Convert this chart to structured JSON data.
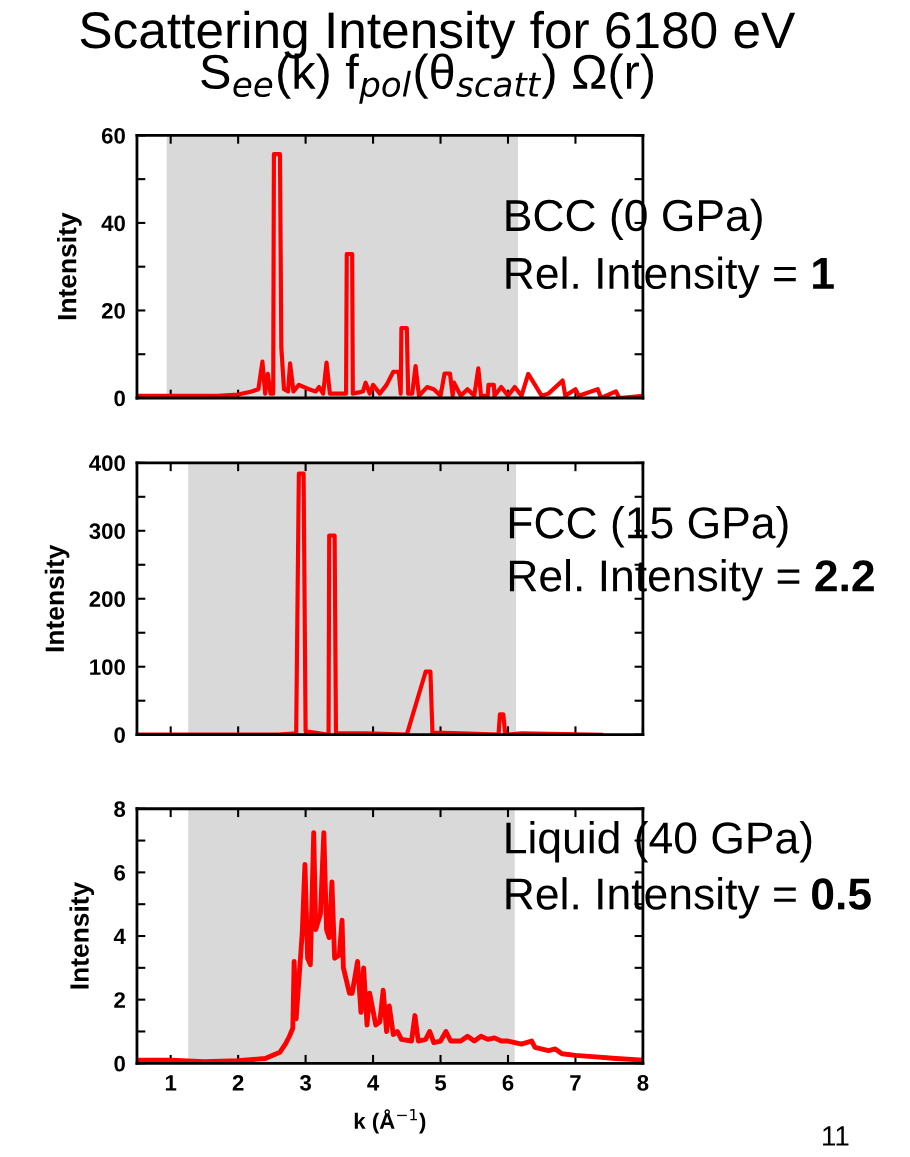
{
  "chart_data": [
    {
      "type": "line",
      "title": "Scattering Intensity for 6180 eV",
      "subtitle": "S$_{ee}$(k) f$_{pol}$(θ$_{scatt}$) Ω(r)",
      "ylabel": "Intensity",
      "xlim": [
        0.5,
        8
      ],
      "xticks": [
        1,
        2,
        3,
        4,
        5,
        6,
        7,
        8
      ],
      "ylim": [
        0,
        60
      ],
      "yticks": [
        0,
        {
          "value": 10,
          "label": null
        },
        20,
        {
          "value": 30,
          "label": null
        },
        40,
        {
          "value": 50,
          "label": null
        },
        60
      ],
      "tick_labels": "y",
      "grid": false,
      "marker": "none",
      "line_style": "solid",
      "bands": [
        {
          "axis": "x",
          "from": 0.94,
          "to": 6.15,
          "color": "#d9d9d9"
        }
      ],
      "annotations": [
        "BCC (0 GPa)",
        "Rel. Intensity = ",
        "1"
      ],
      "series": [
        {
          "color": "#ff0000",
          "x": [
            0.5,
            1.7,
            2.0,
            2.2,
            2.3,
            2.36,
            2.4,
            2.44,
            2.48,
            2.52,
            2.53,
            2.62,
            2.64,
            2.68,
            2.74,
            2.77,
            2.82,
            2.9,
            3.05,
            3.15,
            3.2,
            3.26,
            3.31,
            3.36,
            3.5,
            3.6,
            3.61,
            3.69,
            3.7,
            3.85,
            3.89,
            3.95,
            4.0,
            4.1,
            4.2,
            4.3,
            4.38,
            4.41,
            4.42,
            4.5,
            4.52,
            4.58,
            4.63,
            4.68,
            4.8,
            4.9,
            5.0,
            5.06,
            5.14,
            5.18,
            5.2,
            5.3,
            5.4,
            5.5,
            5.56,
            5.6,
            5.7,
            5.71,
            5.79,
            5.8,
            5.9,
            6.0,
            6.1,
            6.2,
            6.3,
            6.5,
            6.6,
            6.81,
            6.85,
            7.0,
            7.05,
            7.33,
            7.38,
            7.6,
            7.65,
            8.0
          ],
          "values": [
            0.5,
            0.5,
            0.8,
            1.5,
            2,
            8.3,
            1,
            5.5,
            1,
            1,
            55.7,
            55.7,
            11.5,
            2,
            1.5,
            7.9,
            1.5,
            3,
            2,
            1.5,
            2.5,
            1,
            8.1,
            1,
            1,
            1,
            32.9,
            32.9,
            1,
            1.5,
            3.5,
            1,
            3,
            1,
            3,
            6,
            6,
            1,
            16,
            16,
            1,
            1,
            7.3,
            0.5,
            2.5,
            2,
            0.5,
            5.6,
            5.6,
            0.5,
            3.5,
            0.5,
            2,
            0.5,
            6.8,
            0.5,
            0.5,
            3,
            3,
            0.5,
            2.5,
            0.5,
            2.5,
            0.5,
            5.5,
            0.5,
            1,
            4,
            0.5,
            2,
            0.5,
            2,
            0,
            1.5,
            0,
            0.5
          ]
        }
      ]
    },
    {
      "type": "line",
      "ylabel": "Intensity",
      "xlim": [
        0.5,
        8
      ],
      "xticks": [
        1,
        2,
        3,
        4,
        5,
        6,
        7,
        8
      ],
      "ylim": [
        0,
        400
      ],
      "yticks": [
        0,
        {
          "value": 50,
          "label": null
        },
        100,
        {
          "value": 150,
          "label": null
        },
        200,
        {
          "value": 250,
          "label": null
        },
        300,
        {
          "value": 350,
          "label": null
        },
        400
      ],
      "tick_labels": "y",
      "grid": false,
      "marker": "none",
      "line_style": "solid",
      "bands": [
        {
          "axis": "x",
          "from": 1.26,
          "to": 6.12,
          "color": "#d9d9d9"
        }
      ],
      "annotations": [
        "FCC (15 GPa)",
        "Rel. Intensity = ",
        "2.2"
      ],
      "series": [
        {
          "color": "#ff0000",
          "x": [
            0.5,
            2.6,
            2.86,
            2.9,
            2.97,
            3.0,
            3.2,
            3.34,
            3.35,
            3.43,
            3.45,
            3.9,
            4.5,
            4.78,
            4.85,
            4.88,
            5.3,
            5.86,
            5.88,
            5.93,
            5.96,
            6.2,
            7.38
          ],
          "values": [
            0,
            0,
            2,
            384,
            384,
            5,
            2,
            0,
            293,
            293,
            2,
            2,
            0,
            93,
            93,
            3,
            2,
            0,
            30,
            30,
            0,
            2,
            0
          ]
        }
      ]
    },
    {
      "type": "line",
      "ylabel": "Intensity",
      "xlabel": "k (Å$^{−1}$)",
      "xlim": [
        0.5,
        8
      ],
      "xticks": [
        1,
        2,
        3,
        4,
        5,
        6,
        7,
        8
      ],
      "ylim": [
        0,
        8
      ],
      "yticks": [
        0,
        {
          "value": 1,
          "label": null
        },
        2,
        {
          "value": 3,
          "label": null
        },
        4,
        {
          "value": 5,
          "label": null
        },
        6,
        {
          "value": 7,
          "label": null
        },
        8
      ],
      "grid": false,
      "marker": "none",
      "line_style": "solid",
      "bands": [
        {
          "axis": "x",
          "from": 1.26,
          "to": 6.1,
          "color": "#d9d9d9"
        }
      ],
      "annotations": [
        "Liquid (40 GPa)",
        "Rel. Intensity = ",
        "0.5",
        "11"
      ],
      "series": [
        {
          "color": "#ff0000",
          "x": [
            0.5,
            1.0,
            1.5,
            2.0,
            2.4,
            2.62,
            2.7,
            2.76,
            2.81,
            2.83,
            2.86,
            2.95,
            2.99,
            3.03,
            3.07,
            3.12,
            3.15,
            3.22,
            3.27,
            3.31,
            3.35,
            3.39,
            3.43,
            3.5,
            3.54,
            3.56,
            3.65,
            3.69,
            3.77,
            3.82,
            3.86,
            3.91,
            3.95,
            4.04,
            4.1,
            4.15,
            4.2,
            4.24,
            4.3,
            4.36,
            4.42,
            4.57,
            4.62,
            4.67,
            4.78,
            4.84,
            4.9,
            5.0,
            5.08,
            5.15,
            5.3,
            5.4,
            5.5,
            5.6,
            5.7,
            5.8,
            5.9,
            6.0,
            6.1,
            6.2,
            6.35,
            6.4,
            6.6,
            6.7,
            6.8,
            7.0,
            7.3,
            7.6,
            8.0
          ],
          "values": [
            0.1,
            0.1,
            0.05,
            0.08,
            0.15,
            0.35,
            0.6,
            0.85,
            1.1,
            3.2,
            1.4,
            4.1,
            6.25,
            3.3,
            3.1,
            7.25,
            4.2,
            4.7,
            7.25,
            4.2,
            3.95,
            5.7,
            3.3,
            3.4,
            4.5,
            3.0,
            2.2,
            2.2,
            3.2,
            1.6,
            3.0,
            1.2,
            2.2,
            1.2,
            1.3,
            2.3,
            1.0,
            1.8,
            0.9,
            1.0,
            0.75,
            0.7,
            1.5,
            0.7,
            0.75,
            1.0,
            0.65,
            0.7,
            1.0,
            0.7,
            0.7,
            0.85,
            0.7,
            0.85,
            0.75,
            0.8,
            0.7,
            0.7,
            0.65,
            0.6,
            0.7,
            0.5,
            0.4,
            0.45,
            0.3,
            0.25,
            0.2,
            0.15,
            0.1
          ]
        }
      ]
    }
  ]
}
